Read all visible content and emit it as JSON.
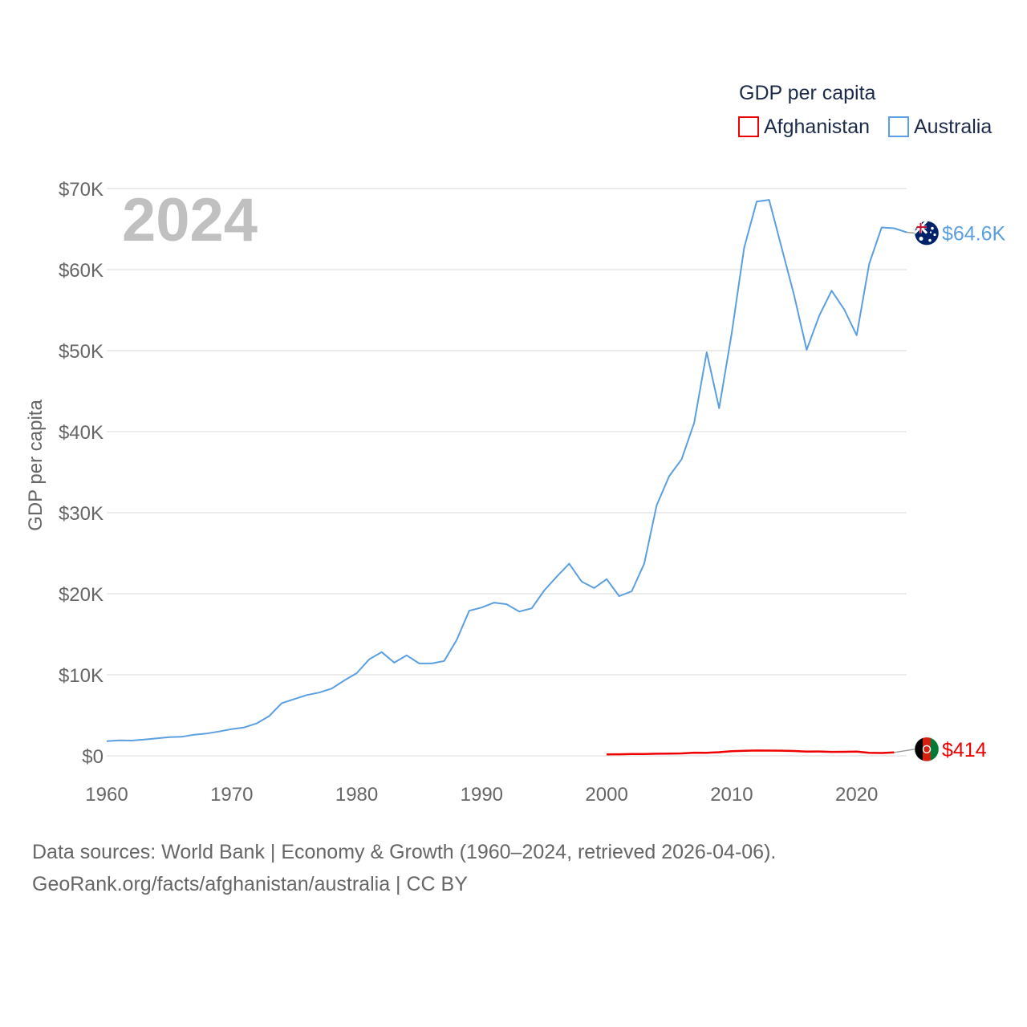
{
  "chart_data": {
    "type": "line",
    "title": "",
    "ylabel": "GDP per capita",
    "xlabel": "",
    "year_label": "2024",
    "ylim": [
      0,
      70000
    ],
    "xlim": [
      1960,
      2024
    ],
    "x_ticks": [
      1960,
      1970,
      1980,
      1990,
      2000,
      2010,
      2020
    ],
    "x_tick_labels": [
      "1960",
      "1970",
      "1980",
      "1990",
      "2000",
      "2010",
      "2020"
    ],
    "y_ticks": [
      0,
      10000,
      20000,
      30000,
      40000,
      50000,
      60000,
      70000
    ],
    "y_tick_labels": [
      "$0",
      "$10K",
      "$20K",
      "$30K",
      "$40K",
      "$50K",
      "$60K",
      "$70K"
    ],
    "grid": true,
    "legend": {
      "title": "GDP per capita",
      "position": "top-right",
      "entries": [
        "Afghanistan",
        "Australia"
      ]
    },
    "series": [
      {
        "name": "Afghanistan",
        "color": "#ee0000",
        "end_label": "$414",
        "flag_icon": "afghanistan-flag-icon",
        "points": [
          [
            2000,
            180
          ],
          [
            2001,
            190
          ],
          [
            2002,
            220
          ],
          [
            2003,
            230
          ],
          [
            2004,
            260
          ],
          [
            2005,
            280
          ],
          [
            2006,
            300
          ],
          [
            2007,
            390
          ],
          [
            2008,
            380
          ],
          [
            2009,
            450
          ],
          [
            2010,
            560
          ],
          [
            2011,
            610
          ],
          [
            2012,
            650
          ],
          [
            2013,
            640
          ],
          [
            2014,
            630
          ],
          [
            2015,
            590
          ],
          [
            2016,
            520
          ],
          [
            2017,
            530
          ],
          [
            2018,
            490
          ],
          [
            2019,
            500
          ],
          [
            2020,
            510
          ],
          [
            2021,
            370
          ],
          [
            2022,
            350
          ],
          [
            2023,
            414
          ]
        ]
      },
      {
        "name": "Australia",
        "color": "#5b9fe0",
        "end_label": "$64.6K",
        "flag_icon": "australia-flag-icon",
        "points": [
          [
            1960,
            1800
          ],
          [
            1961,
            1900
          ],
          [
            1962,
            1880
          ],
          [
            1963,
            2000
          ],
          [
            1964,
            2150
          ],
          [
            1965,
            2300
          ],
          [
            1966,
            2350
          ],
          [
            1967,
            2600
          ],
          [
            1968,
            2750
          ],
          [
            1969,
            3000
          ],
          [
            1970,
            3300
          ],
          [
            1971,
            3500
          ],
          [
            1972,
            4000
          ],
          [
            1973,
            4900
          ],
          [
            1974,
            6500
          ],
          [
            1975,
            7000
          ],
          [
            1976,
            7500
          ],
          [
            1977,
            7800
          ],
          [
            1978,
            8300
          ],
          [
            1979,
            9300
          ],
          [
            1980,
            10200
          ],
          [
            1981,
            11900
          ],
          [
            1982,
            12800
          ],
          [
            1983,
            11500
          ],
          [
            1984,
            12400
          ],
          [
            1985,
            11400
          ],
          [
            1986,
            11400
          ],
          [
            1987,
            11700
          ],
          [
            1988,
            14300
          ],
          [
            1989,
            17900
          ],
          [
            1990,
            18300
          ],
          [
            1991,
            18900
          ],
          [
            1992,
            18700
          ],
          [
            1993,
            17800
          ],
          [
            1994,
            18200
          ],
          [
            1995,
            20400
          ],
          [
            1996,
            22100
          ],
          [
            1997,
            23700
          ],
          [
            1998,
            21500
          ],
          [
            1999,
            20700
          ],
          [
            2000,
            21800
          ],
          [
            2001,
            19700
          ],
          [
            2002,
            20300
          ],
          [
            2003,
            23700
          ],
          [
            2004,
            30900
          ],
          [
            2005,
            34500
          ],
          [
            2006,
            36600
          ],
          [
            2007,
            41100
          ],
          [
            2008,
            49800
          ],
          [
            2009,
            42900
          ],
          [
            2010,
            52100
          ],
          [
            2011,
            62700
          ],
          [
            2012,
            68400
          ],
          [
            2013,
            68600
          ],
          [
            2014,
            62700
          ],
          [
            2015,
            56800
          ],
          [
            2016,
            50100
          ],
          [
            2017,
            54300
          ],
          [
            2018,
            57400
          ],
          [
            2019,
            55100
          ],
          [
            2020,
            51900
          ],
          [
            2021,
            60700
          ],
          [
            2022,
            65200
          ],
          [
            2023,
            65100
          ],
          [
            2024,
            64600
          ]
        ]
      }
    ],
    "colors": {
      "grid": "#e6e6e6",
      "tick_text": "#666666",
      "legend_text": "#1c2b4a",
      "year_watermark": "#c0c0c0"
    }
  },
  "source": {
    "line1": "Data sources: World Bank | Economy & Growth (1960–2024, retrieved 2026-04-06).",
    "line2": "GeoRank.org/facts/afghanistan/australia | CC BY"
  }
}
